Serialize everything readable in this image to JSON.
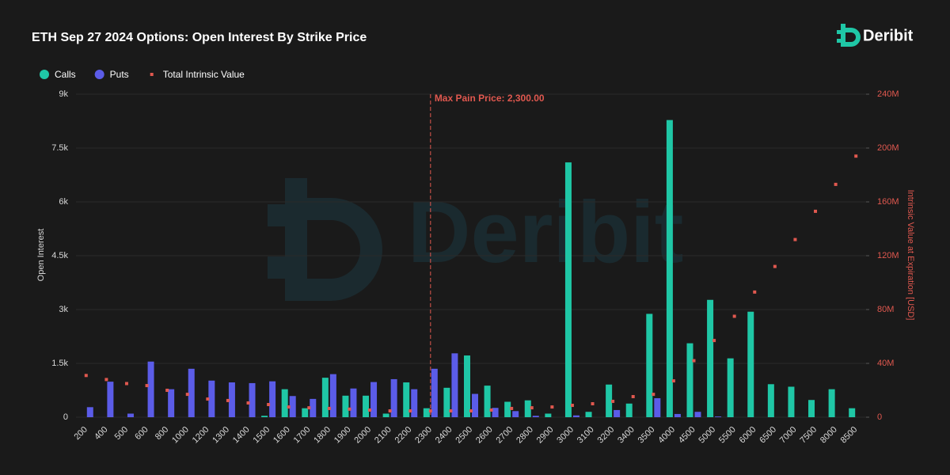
{
  "brand": "Deribit",
  "chart_data": {
    "type": "bar",
    "title": "ETH Sep 27 2024 Options: Open Interest By Strike Price",
    "y_label": "Open Interest",
    "y2_label": "Intrinsic Value at Expiration [USD]",
    "categories": [
      "200",
      "400",
      "500",
      "600",
      "800",
      "1000",
      "1200",
      "1300",
      "1400",
      "1500",
      "1600",
      "1700",
      "1800",
      "1900",
      "2000",
      "2100",
      "2200",
      "2300",
      "2400",
      "2500",
      "2600",
      "2700",
      "2800",
      "2900",
      "3000",
      "3100",
      "3200",
      "3400",
      "3500",
      "4000",
      "4500",
      "5000",
      "5500",
      "6000",
      "6500",
      "7000",
      "7500",
      "8000",
      "8500"
    ],
    "series": [
      {
        "name": "Calls",
        "color": "#1fc7a6",
        "values": [
          0,
          0,
          0,
          0,
          0,
          0,
          0,
          0,
          0,
          40,
          780,
          250,
          1100,
          600,
          600,
          100,
          970,
          250,
          820,
          1720,
          880,
          430,
          470,
          100,
          7100,
          150,
          910,
          380,
          2880,
          8280,
          2060,
          3270,
          1640,
          2940,
          920,
          850,
          480,
          780,
          250
        ]
      },
      {
        "name": "Puts",
        "color": "#5b5ce8",
        "values": [
          280,
          990,
          100,
          1550,
          780,
          1350,
          1020,
          970,
          950,
          1000,
          590,
          510,
          1200,
          800,
          980,
          1060,
          780,
          1350,
          1780,
          650,
          260,
          170,
          40,
          0,
          50,
          0,
          200,
          0,
          530,
          90,
          150,
          20,
          0,
          0,
          0,
          0,
          0,
          0,
          0
        ]
      },
      {
        "name": "Total Intrinsic Value",
        "color": "#e0584f",
        "axis": "y2",
        "values": [
          31000000,
          28000000,
          25000000,
          23500000,
          20000000,
          17000000,
          13500000,
          12400000,
          10600000,
          9400000,
          7600000,
          7000000,
          6500000,
          6000000,
          5300000,
          4700000,
          4700000,
          4700000,
          4700000,
          4700000,
          5300000,
          6500000,
          7000000,
          7600000,
          8800000,
          10000000,
          11800000,
          15300000,
          17000000,
          27000000,
          42000000,
          57000000,
          75000000,
          93000000,
          112000000,
          132000000,
          153000000,
          173000000,
          194000000
        ]
      }
    ],
    "ylim": [
      0,
      9000
    ],
    "yticks": [
      0,
      {
        "value": 1500,
        "label": "1.5k"
      },
      {
        "value": 3000,
        "label": "3k"
      },
      {
        "value": 4500,
        "label": "4.5k"
      },
      {
        "value": 6000,
        "label": "6k"
      },
      {
        "value": 7500,
        "label": "7.5k"
      },
      {
        "value": 9000,
        "label": "9k"
      }
    ],
    "y2lim": [
      0,
      240000000
    ],
    "y2ticks": [
      0,
      {
        "value": 40000000,
        "label": "40M"
      },
      {
        "value": 80000000,
        "label": "80M"
      },
      {
        "value": 120000000,
        "label": "120M"
      },
      {
        "value": 160000000,
        "label": "160M"
      },
      {
        "value": 200000000,
        "label": "200M"
      },
      {
        "value": 240000000,
        "label": "240M"
      }
    ],
    "grid": true,
    "legend": "top-left",
    "max_pain": {
      "label": "Max Pain Price: 2,300.00",
      "value": 2300,
      "color": "#e0584f"
    }
  }
}
